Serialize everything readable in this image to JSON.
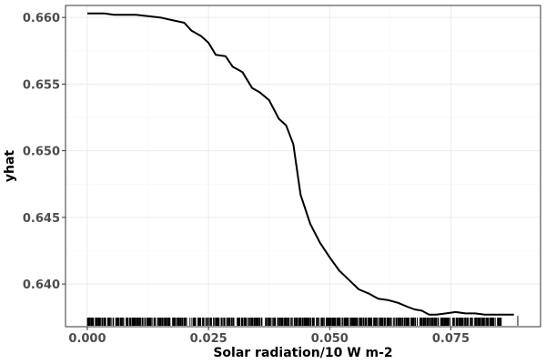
{
  "chart_data": {
    "type": "line",
    "title": "",
    "xlabel": "Solar radiation/10 W m-2",
    "ylabel": "yhat",
    "xlim": [
      -0.0045,
      0.0935
    ],
    "ylim": [
      0.6368,
      0.6609
    ],
    "x_ticks": [
      0.0,
      0.025,
      0.05,
      0.075
    ],
    "x_tick_labels": [
      "0.000",
      "0.025",
      "0.050",
      "0.075"
    ],
    "y_ticks": [
      0.64,
      0.645,
      0.65,
      0.655,
      0.66
    ],
    "y_tick_labels": [
      "0.640",
      "0.645",
      "0.650",
      "0.655",
      "0.660"
    ],
    "grid": true,
    "rug": true,
    "series": [
      {
        "color": "#000000",
        "x": [
          0.0,
          0.0035,
          0.0055,
          0.0075,
          0.01,
          0.0125,
          0.015,
          0.0175,
          0.02,
          0.0215,
          0.0235,
          0.025,
          0.0265,
          0.0285,
          0.03,
          0.032,
          0.034,
          0.0355,
          0.0375,
          0.0395,
          0.041,
          0.0425,
          0.044,
          0.046,
          0.048,
          0.05,
          0.052,
          0.054,
          0.056,
          0.058,
          0.06,
          0.062,
          0.064,
          0.066,
          0.0675,
          0.069,
          0.0705,
          0.072,
          0.074,
          0.076,
          0.078,
          0.08,
          0.082,
          0.084,
          0.086,
          0.088
        ],
        "y": [
          0.6603,
          0.6603,
          0.6602,
          0.6602,
          0.6602,
          0.6601,
          0.66,
          0.6598,
          0.6596,
          0.659,
          0.6586,
          0.6581,
          0.6572,
          0.6571,
          0.6563,
          0.6559,
          0.6547,
          0.6544,
          0.6538,
          0.6524,
          0.6519,
          0.6505,
          0.6467,
          0.6445,
          0.6431,
          0.642,
          0.641,
          0.6403,
          0.6396,
          0.6393,
          0.6389,
          0.6388,
          0.6386,
          0.6383,
          0.6381,
          0.638,
          0.6377,
          0.6377,
          0.6378,
          0.6379,
          0.6378,
          0.6378,
          0.6377,
          0.6377,
          0.6377,
          0.6377
        ]
      }
    ]
  }
}
